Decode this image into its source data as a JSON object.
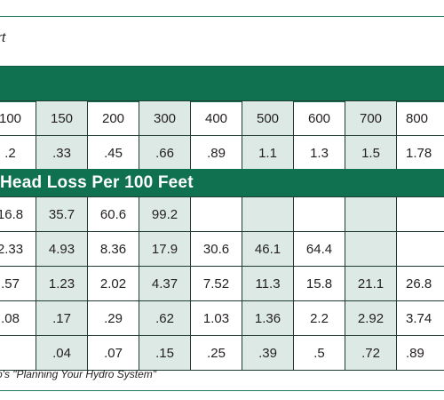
{
  "subtitle": "rt",
  "flow_row": [
    "100",
    "150",
    "200",
    "300",
    "400",
    "500",
    "600",
    "700",
    "800"
  ],
  "velocity_row": [
    ".2",
    ".33",
    ".45",
    ".66",
    ".89",
    "1.1",
    "1.3",
    "1.5",
    "1.78"
  ],
  "section_title": "Head Loss Per 100 Feet",
  "loss_rows": [
    [
      "16.8",
      "35.7",
      "60.6",
      "99.2",
      "",
      "",
      "",
      "",
      ""
    ],
    [
      "2.33",
      "4.93",
      "8.36",
      "17.9",
      "30.6",
      "46.1",
      "64.4",
      "",
      ""
    ],
    [
      ".57",
      "1.23",
      "2.02",
      "4.37",
      "7.52",
      "11.3",
      "15.8",
      "21.1",
      "26.8"
    ],
    [
      ".08",
      ".17",
      ".29",
      ".62",
      "1.03",
      "1.36",
      "2.2",
      "2.92",
      "3.74"
    ],
    [
      "",
      ".04",
      ".07",
      ".15",
      ".25",
      ".39",
      ".5",
      ".72",
      ".89"
    ]
  ],
  "source": "o's \"Planning Your Hydro System\"",
  "colors": {
    "band": "#0f7150",
    "shade": "#dde9e4",
    "rule": "#1f7a5c"
  }
}
